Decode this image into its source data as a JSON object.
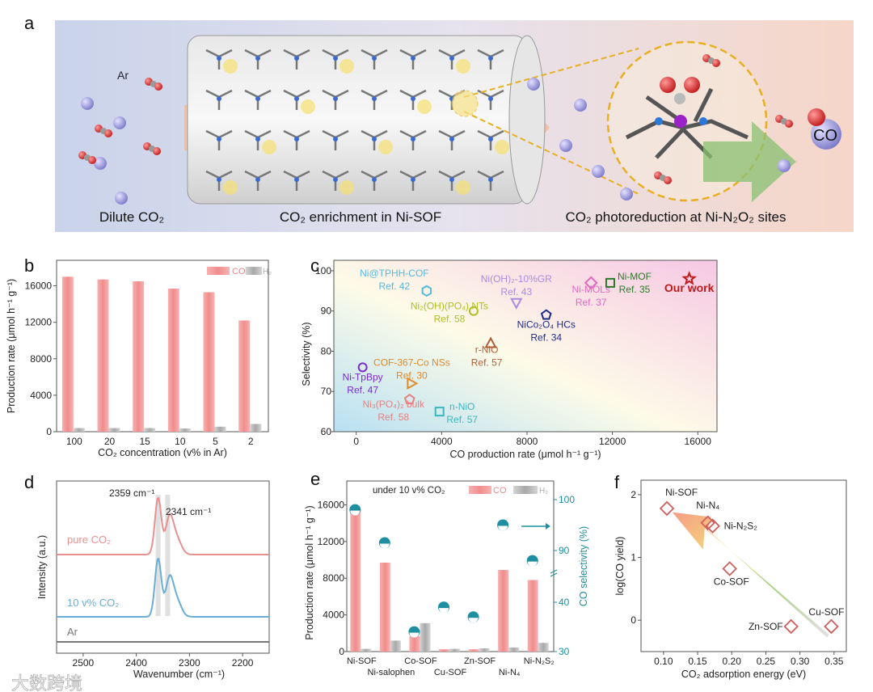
{
  "figure": {
    "panel_labels": [
      "a",
      "b",
      "c",
      "d",
      "e",
      "f"
    ],
    "watermark": "大数跨境"
  },
  "panel_a": {
    "captions": [
      "Dilute CO₂",
      "CO₂ enrichment in Ni-SOF",
      "CO₂ photoreduction at Ni-N₂O₂ sites"
    ],
    "ar_label": "Ar",
    "co_label": "CO"
  },
  "colors": {
    "co": "#f4a0a0",
    "h2": "#b8b8b8",
    "teal": "#1e8fa0",
    "pink_line": "#e89090",
    "blue_line": "#6aaed6",
    "grey_line": "#777777"
  },
  "chart_data": [
    {
      "id": "b",
      "type": "bar",
      "title": "",
      "xlabel": "CO₂ concentration (v% in Ar)",
      "ylabel": "Production rate (μmol h⁻¹ g⁻¹)",
      "categories": [
        "100",
        "20",
        "15",
        "10",
        "5",
        "2"
      ],
      "ylim": [
        0,
        18800
      ],
      "yticks": [
        0,
        4000,
        8000,
        12000,
        16000
      ],
      "legend": [
        "CO",
        "H₂"
      ],
      "legend_position": "top-right",
      "series": [
        {
          "name": "CO",
          "values": [
            17000,
            16700,
            16500,
            15700,
            15300,
            12200
          ]
        },
        {
          "name": "H₂",
          "values": [
            400,
            400,
            400,
            350,
            550,
            850
          ]
        }
      ]
    },
    {
      "id": "c",
      "type": "scatter",
      "xlabel": "CO production rate (μmol h⁻¹ g⁻¹)",
      "ylabel": "Selectivity (%)",
      "xlim": [
        -1050,
        16900
      ],
      "ylim": [
        60,
        102.6
      ],
      "xticks": [
        0,
        4000,
        8000,
        12000,
        16000
      ],
      "yticks": [
        60,
        70,
        80,
        90,
        100
      ],
      "points": [
        {
          "name": "Ni@TPHH-COF",
          "ref": "Ref. 42",
          "x": 3300,
          "y": 95,
          "marker": "hexagon",
          "color": "#5bb6dd"
        },
        {
          "name": "Ni₂(OH)(PO₄) NTs",
          "ref": "Ref. 58",
          "x": 5500,
          "y": 90,
          "marker": "circle",
          "color": "#b0bf22"
        },
        {
          "name": "Ni(OH)₂-10%GR",
          "ref": "Ref. 43",
          "x": 7500,
          "y": 92,
          "marker": "triangle-down",
          "color": "#a98be0"
        },
        {
          "name": "r-NiO",
          "ref": "Ref. 57",
          "x": 6300,
          "y": 82,
          "marker": "triangle-up",
          "color": "#b0603a"
        },
        {
          "name": "NiCo₂O₄ HCs",
          "ref": "Ref. 34",
          "x": 8900,
          "y": 89,
          "marker": "pentagon",
          "color": "#1b2b8c"
        },
        {
          "name": "Ni-MOLs",
          "ref": "Ref. 37",
          "x": 11000,
          "y": 97,
          "marker": "diamond",
          "color": "#e06ac0"
        },
        {
          "name": "Ni-MOF",
          "ref": "Ref. 35",
          "x": 11900,
          "y": 97,
          "marker": "square",
          "color": "#2a7a2a"
        },
        {
          "name": "Our work",
          "ref": "",
          "x": 15600,
          "y": 98,
          "marker": "star",
          "color": "#c01a1a"
        },
        {
          "name": "COF-367-Co NSs",
          "ref": "Ref. 30",
          "x": 2600,
          "y": 72,
          "marker": "triangle-right",
          "color": "#e08a2a"
        },
        {
          "name": "Ni-TpBpy",
          "ref": "Ref. 47",
          "x": 300,
          "y": 76,
          "marker": "circle",
          "color": "#7a2ad0"
        },
        {
          "name": "Ni₃(PO₄)₂ bulk",
          "ref": "Ref. 58",
          "x": 2500,
          "y": 68,
          "marker": "pentagon",
          "color": "#e88080"
        },
        {
          "name": "n-NiO",
          "ref": "Ref. 57",
          "x": 3900,
          "y": 65,
          "marker": "square",
          "color": "#3ab8c0"
        }
      ]
    },
    {
      "id": "d",
      "type": "line",
      "xlabel": "Wavenumber (cm⁻¹)",
      "ylabel": "Intensity (a.u.)",
      "xlim": [
        2550,
        2150
      ],
      "xticks": [
        2500,
        2400,
        2300,
        2200
      ],
      "annotations": [
        "2359 cm⁻¹",
        "2341 cm⁻¹"
      ],
      "peaks": [
        2359,
        2341
      ],
      "series": [
        {
          "name": "pure CO₂",
          "offset": 2.4,
          "scale": 1.0,
          "color": "#e89090"
        },
        {
          "name": "10 v% CO₂",
          "offset": 1.0,
          "scale": 1.0,
          "color": "#6aaed6"
        },
        {
          "name": "Ar",
          "offset": 0.45,
          "scale": 0.0,
          "color": "#777777"
        }
      ]
    },
    {
      "id": "e",
      "type": "bar",
      "annotation": "under 10 v% CO₂",
      "ylabel": "Production rate (μmol h⁻¹ g⁻¹)",
      "y2label": "CO selectivity (%)",
      "categories": [
        "Ni-SOF",
        "Ni-salophen",
        "Co-SOF",
        "Cu-SOF",
        "Zn-SOF",
        "Ni-N₄",
        "Ni-N₂S₂"
      ],
      "ylim": [
        0,
        18600
      ],
      "yticks": [
        0,
        4000,
        8000,
        12000,
        16000
      ],
      "y2ticks": [
        30,
        40,
        90,
        100
      ],
      "y2_break": [
        45,
        85
      ],
      "legend": [
        "CO",
        "H₂"
      ],
      "series": [
        {
          "name": "CO",
          "values": [
            15600,
            9700,
            1700,
            250,
            250,
            8900,
            7800
          ]
        },
        {
          "name": "H₂",
          "values": [
            300,
            1200,
            3100,
            300,
            350,
            450,
            950
          ]
        },
        {
          "name": "CO selectivity",
          "axis": "right",
          "values": [
            98,
            91.5,
            34,
            39,
            37,
            95,
            88
          ]
        }
      ]
    },
    {
      "id": "f",
      "type": "scatter",
      "xlabel": "CO₂ adsorption energy (eV)",
      "ylabel": "log(CO yield)",
      "xlim": [
        0.067,
        0.368
      ],
      "ylim": [
        -0.5,
        2.23
      ],
      "xticks": [
        "0.10",
        "0.15",
        "0.20",
        "0.25",
        "0.30",
        "0.35"
      ],
      "yticks": [
        0,
        1,
        2
      ],
      "points": [
        {
          "name": "Ni-SOF",
          "x": 0.105,
          "y": 1.78
        },
        {
          "name": "Ni-N₄",
          "x": 0.165,
          "y": 1.55
        },
        {
          "name": "Ni-N₂S₂",
          "x": 0.172,
          "y": 1.5
        },
        {
          "name": "Co-SOF",
          "x": 0.197,
          "y": 0.82
        },
        {
          "name": "Zn-SOF",
          "x": 0.287,
          "y": -0.1
        },
        {
          "name": "Cu-SOF",
          "x": 0.346,
          "y": -0.1
        }
      ]
    }
  ]
}
